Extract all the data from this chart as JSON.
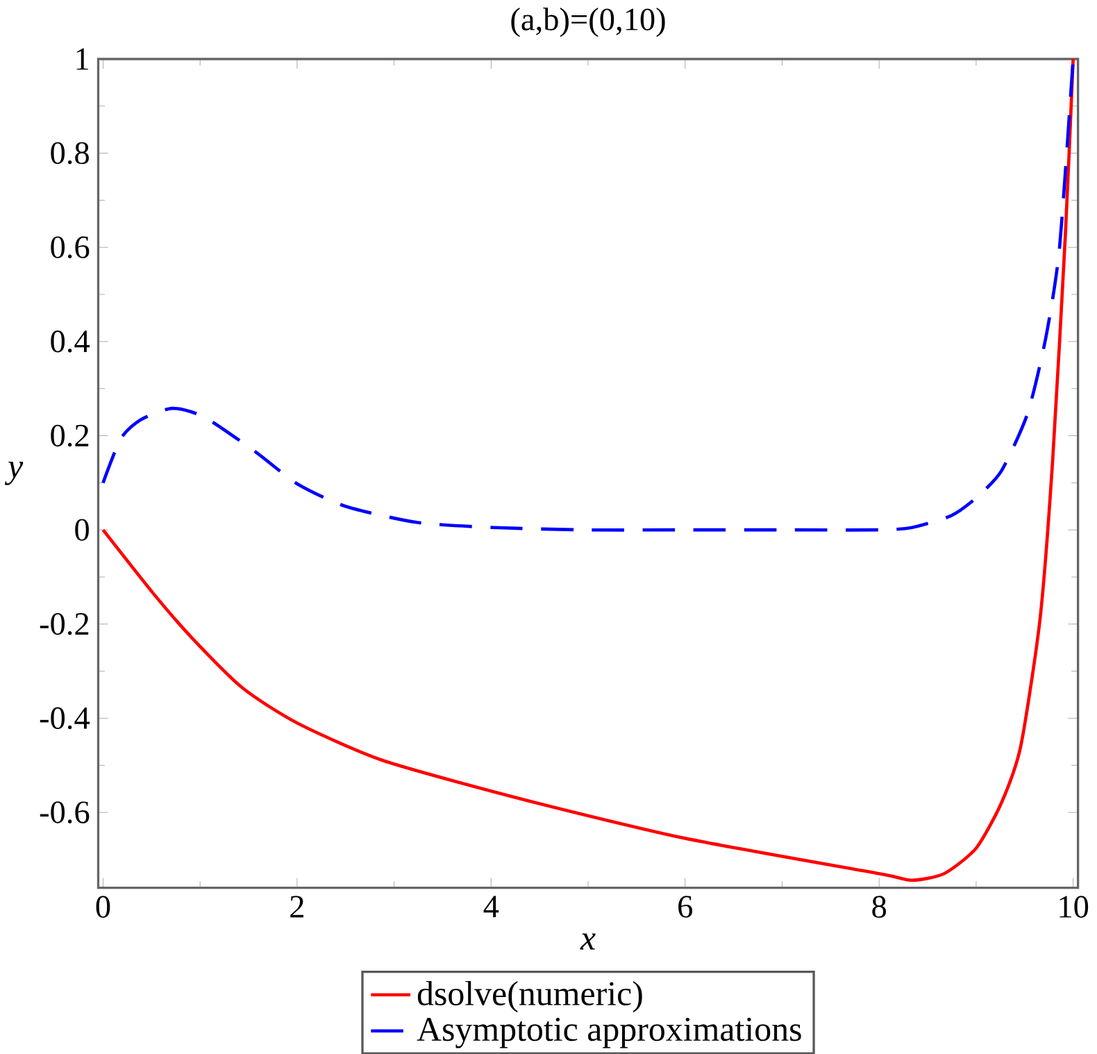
{
  "chart_data": {
    "type": "line",
    "title": "(a,b)=(0,10)",
    "xlabel": "x",
    "ylabel": "y",
    "xlim": [
      -0.05,
      10.05
    ],
    "ylim": [
      -0.76,
      1
    ],
    "xticks": [
      0,
      2,
      4,
      6,
      8,
      10
    ],
    "yticks": [
      -0.6,
      -0.4,
      -0.2,
      0,
      0.2,
      0.4,
      0.6,
      0.8,
      1
    ],
    "legend": "bottom",
    "grid": false,
    "series": [
      {
        "name": "dsolve(numeric)",
        "color": "#ff0000",
        "line_style": "solid",
        "x": [
          0,
          0.51,
          0.91,
          1.44,
          2,
          2.89,
          4.36,
          6,
          8,
          8.34,
          8.67,
          9,
          9.26,
          9.46,
          9.66,
          9.79,
          9.92,
          10
        ],
        "values": [
          0,
          -0.133,
          -0.228,
          -0.336,
          -0.41,
          -0.49,
          -0.574,
          -0.655,
          -0.73,
          -0.744,
          -0.73,
          -0.676,
          -0.58,
          -0.459,
          -0.187,
          0.152,
          0.627,
          1
        ]
      },
      {
        "name": "Asymptotic approximations",
        "color": "#0000ff",
        "line_style": "dashed",
        "x": [
          0,
          0.18,
          0.38,
          0.71,
          1.04,
          1.57,
          2,
          2.5,
          3.23,
          4.02,
          5,
          6,
          7,
          8,
          8.34,
          8.74,
          9,
          9.26,
          9.53,
          9.72,
          9.86,
          10
        ],
        "values": [
          0.1,
          0.193,
          0.233,
          0.258,
          0.24,
          0.166,
          0.098,
          0.05,
          0.016,
          0.005,
          0,
          0,
          0,
          0,
          0.005,
          0.03,
          0.068,
          0.125,
          0.247,
          0.41,
          0.6,
          1
        ]
      }
    ]
  }
}
